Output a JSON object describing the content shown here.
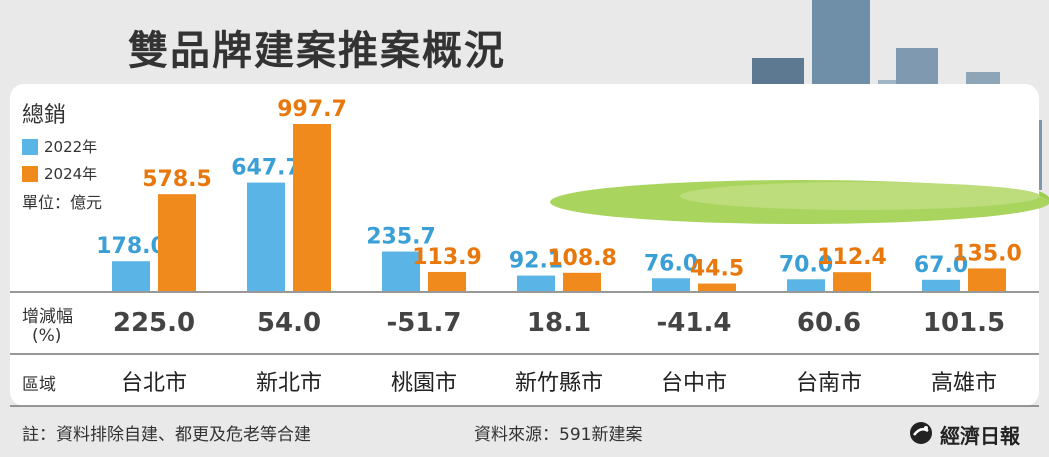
{
  "title": "雙品牌建案推案概況",
  "legend": {
    "title": "總銷",
    "unit": "單位：億元"
  },
  "row_labels": {
    "change_line1": "增減幅",
    "change_line2": "(%)",
    "region": "區域"
  },
  "footer": {
    "note": "註：資料排除自建、都更及危老等合建",
    "source": "資料來源：591新建案",
    "publisher": "經濟日報"
  },
  "colors": {
    "series_2022": "#5ab4e5",
    "series_2024": "#f08a1c",
    "label_2022": "#3a9fd6",
    "label_2024": "#e8780c"
  },
  "chart_data": {
    "type": "bar",
    "categories": [
      "台北市",
      "新北市",
      "桃園市",
      "新竹縣市",
      "台中市",
      "台南市",
      "高雄市"
    ],
    "series": [
      {
        "name": "2022年",
        "values": [
          178.0,
          647.7,
          235.7,
          92.1,
          76.0,
          70.0,
          67.0
        ]
      },
      {
        "name": "2024年",
        "values": [
          578.5,
          997.7,
          113.9,
          108.8,
          44.5,
          112.4,
          135.0
        ]
      }
    ],
    "value_labels": [
      [
        "178.0",
        "647.7",
        "235.7",
        "92.1",
        "76.0",
        "70.0",
        "67.0"
      ],
      [
        "578.5",
        "997.7",
        "113.9",
        "108.8",
        "44.5",
        "112.4",
        "135.0"
      ]
    ],
    "change_pct": [
      "225.0",
      "54.0",
      "-51.7",
      "18.1",
      "-41.4",
      "60.6",
      "101.5"
    ],
    "ylim": [
      0,
      1000
    ]
  }
}
